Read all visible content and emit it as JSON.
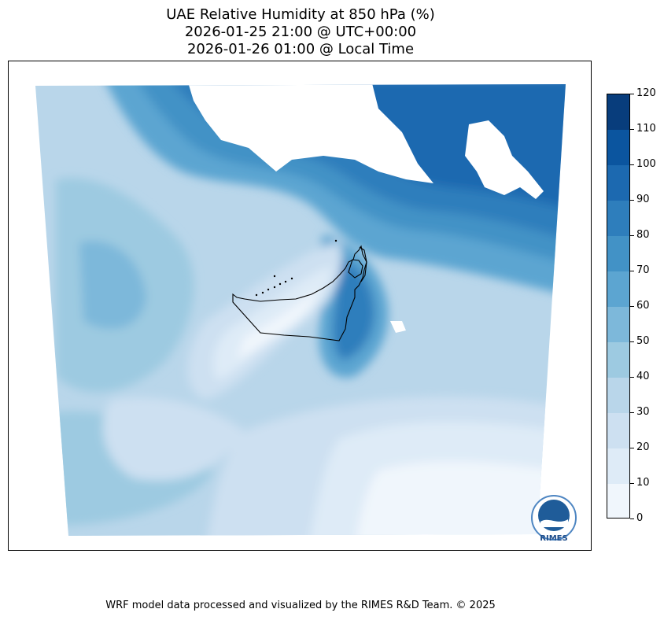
{
  "header": {
    "title": "UAE Relative Humidity at 850 hPa (%)",
    "time_utc": "2026-01-25 21:00 @ UTC+00:00",
    "time_local": "2026-01-26 01:00 @ Local Time"
  },
  "colorbar": {
    "levels": [
      0,
      10,
      20,
      30,
      40,
      50,
      60,
      70,
      80,
      90,
      100,
      110,
      120
    ],
    "tick_labels": [
      "0",
      "10",
      "20",
      "30",
      "40",
      "50",
      "60",
      "70",
      "80",
      "90",
      "100",
      "110",
      "120"
    ],
    "colors": [
      "#f0f6fc",
      "#deebf7",
      "#cde0f1",
      "#b9d6ea",
      "#9dcae1",
      "#7db8da",
      "#5ca5d1",
      "#4292c6",
      "#2e7ebc",
      "#1c69b0",
      "#0b559f",
      "#083d7c"
    ]
  },
  "logo": {
    "text": "RIMES"
  },
  "footer": {
    "credit": "WRF model data processed and visualized by the RIMES R&D Team. © 2025"
  }
}
